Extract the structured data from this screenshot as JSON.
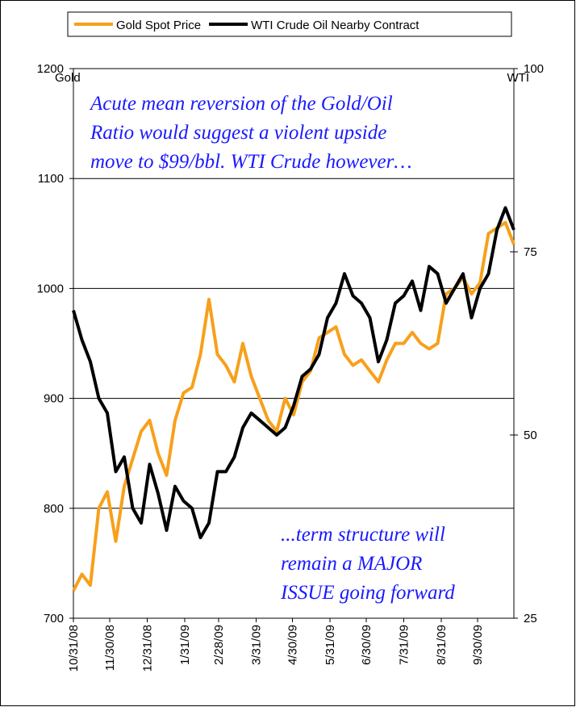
{
  "chart_data": {
    "type": "line",
    "annotations": [
      [
        "Acute mean reversion of the Gold/Oil",
        "Ratio would suggest a violent upside",
        "move to $99/bbl. WTI Crude however…"
      ],
      [
        "...term structure will",
        "remain a MAJOR",
        "ISSUE going forward"
      ]
    ],
    "y_label": "Gold",
    "y2_label": "WTI",
    "x": [
      "10/31/08",
      "11/7/08",
      "11/14/08",
      "11/21/08",
      "11/28/08",
      "12/5/08",
      "12/12/08",
      "12/19/08",
      "12/26/08",
      "1/2/09",
      "1/9/09",
      "1/16/09",
      "1/23/09",
      "1/30/09",
      "2/6/09",
      "2/13/09",
      "2/20/09",
      "2/27/09",
      "3/6/09",
      "3/13/09",
      "3/20/09",
      "3/27/09",
      "4/3/09",
      "4/10/09",
      "4/17/09",
      "4/24/09",
      "5/1/09",
      "5/8/09",
      "5/15/09",
      "5/22/09",
      "5/29/09",
      "6/5/09",
      "6/12/09",
      "6/19/09",
      "6/26/09",
      "7/3/09",
      "7/10/09",
      "7/17/09",
      "7/24/09",
      "7/31/09",
      "8/7/09",
      "8/14/09",
      "8/21/09",
      "8/28/09",
      "9/4/09",
      "9/11/09",
      "9/18/09",
      "9/25/09",
      "10/2/09",
      "10/9/09",
      "10/16/09",
      "10/23/09",
      "10/30/09"
    ],
    "series": [
      {
        "name": "Gold Spot Price",
        "color": "#f7a01c",
        "axis": "y",
        "values": [
          725,
          740,
          730,
          800,
          815,
          770,
          820,
          845,
          870,
          880,
          850,
          830,
          880,
          905,
          910,
          940,
          990,
          940,
          930,
          915,
          950,
          920,
          900,
          880,
          870,
          900,
          885,
          915,
          925,
          955,
          960,
          965,
          940,
          930,
          935,
          925,
          915,
          935,
          950,
          950,
          960,
          950,
          945,
          950,
          995,
          1000,
          1010,
          995,
          1005,
          1050,
          1055,
          1060,
          1040
        ]
      },
      {
        "name": "WTI Crude Oil Nearby Contract",
        "color": "#000000",
        "axis": "y2",
        "values": [
          67,
          63,
          60,
          55,
          53,
          45,
          47,
          40,
          38,
          46,
          42,
          37,
          43,
          41,
          40,
          36,
          38,
          45,
          45,
          47,
          51,
          53,
          52,
          51,
          50,
          51,
          54,
          58,
          59,
          61,
          66,
          68,
          72,
          69,
          68,
          66,
          60,
          63,
          68,
          69,
          71,
          67,
          73,
          72,
          68,
          70,
          72,
          66,
          70,
          72,
          78,
          81,
          78
        ]
      }
    ],
    "xlim": [
      "10/31/08",
      "10/30/09"
    ],
    "xticks": [
      "10/31/08",
      "11/30/08",
      "12/31/08",
      "1/31/09",
      "2/28/09",
      "3/31/09",
      "4/30/09",
      "5/31/09",
      "6/30/09",
      "7/31/09",
      "8/31/09",
      "9/30/09"
    ],
    "ylim": [
      700,
      1200
    ],
    "yticks": [
      700,
      800,
      900,
      1000,
      1100,
      1200
    ],
    "y2lim": [
      25,
      100
    ],
    "y2ticks": [
      25,
      50,
      75,
      100
    ],
    "grid": true,
    "legend": "top"
  }
}
